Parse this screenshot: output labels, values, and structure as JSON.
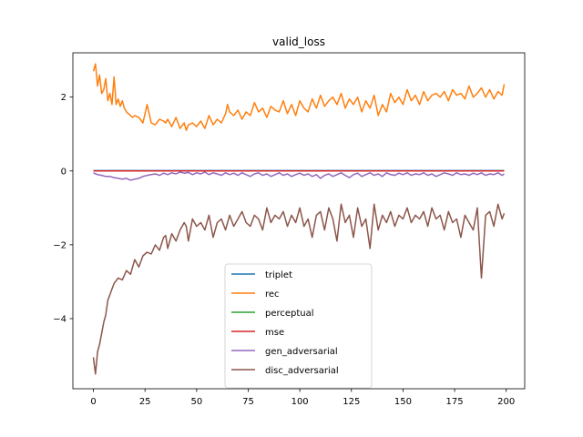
{
  "chart_data": {
    "type": "line",
    "title": "valid_loss",
    "xlabel": "",
    "ylabel": "",
    "xlim": [
      -9.95,
      208.95
    ],
    "ylim": [
      -5.9,
      3.2
    ],
    "xticks": [
      0,
      25,
      50,
      75,
      100,
      125,
      150,
      175,
      200
    ],
    "yticks": [
      -4,
      -2,
      0,
      2
    ],
    "grid": false,
    "legend_position": "lower-center",
    "series": [
      {
        "name": "triplet",
        "color": "#1f77b4",
        "x": [
          0,
          199
        ],
        "y": [
          0.01,
          0.01
        ]
      },
      {
        "name": "rec",
        "color": "#ff7f0e",
        "x": [
          0,
          1,
          2,
          3,
          4,
          5,
          6,
          7,
          8,
          9,
          10,
          11,
          12,
          13,
          14,
          15,
          16,
          17,
          18,
          19,
          20,
          22,
          24,
          26,
          28,
          30,
          32,
          34,
          35,
          36,
          38,
          40,
          42,
          44,
          45,
          46,
          48,
          50,
          52,
          54,
          56,
          58,
          60,
          62,
          64,
          65,
          66,
          68,
          70,
          72,
          74,
          76,
          78,
          80,
          82,
          84,
          86,
          88,
          90,
          92,
          94,
          96,
          98,
          100,
          102,
          104,
          106,
          108,
          110,
          112,
          114,
          116,
          118,
          120,
          122,
          124,
          126,
          128,
          130,
          132,
          134,
          136,
          138,
          140,
          142,
          144,
          146,
          148,
          150,
          152,
          154,
          156,
          158,
          160,
          162,
          164,
          166,
          168,
          170,
          172,
          174,
          176,
          178,
          180,
          182,
          184,
          186,
          188,
          190,
          192,
          194,
          196,
          198,
          199
        ],
        "y": [
          2.7,
          2.9,
          2.3,
          2.6,
          2.1,
          2.2,
          2.5,
          1.9,
          2.1,
          1.8,
          2.55,
          1.8,
          1.95,
          1.75,
          1.9,
          1.7,
          1.6,
          1.55,
          1.5,
          1.45,
          1.5,
          1.45,
          1.3,
          1.8,
          1.3,
          1.25,
          1.4,
          1.35,
          1.3,
          1.4,
          1.2,
          1.45,
          1.15,
          1.3,
          1.1,
          1.25,
          1.3,
          1.2,
          1.35,
          1.15,
          1.5,
          1.25,
          1.4,
          1.3,
          1.55,
          1.8,
          1.6,
          1.5,
          1.65,
          1.4,
          1.6,
          1.5,
          1.85,
          1.6,
          1.7,
          1.45,
          1.75,
          1.65,
          1.6,
          1.9,
          1.55,
          1.8,
          1.5,
          1.9,
          1.7,
          1.6,
          1.95,
          1.7,
          2.05,
          1.75,
          1.9,
          2.0,
          1.8,
          2.1,
          1.7,
          1.95,
          1.8,
          2.0,
          1.6,
          1.9,
          1.7,
          2.05,
          1.5,
          1.8,
          1.6,
          2.1,
          1.85,
          2.0,
          1.8,
          2.2,
          1.9,
          2.05,
          1.8,
          2.15,
          1.9,
          2.05,
          2.1,
          2.0,
          2.15,
          1.9,
          2.2,
          2.05,
          2.1,
          1.95,
          2.3,
          2.0,
          2.1,
          2.25,
          2.0,
          2.2,
          1.95,
          2.15,
          2.05,
          2.35
        ]
      },
      {
        "name": "perceptual",
        "color": "#2ca02c",
        "x": [
          0,
          199
        ],
        "y": [
          0.0,
          0.0
        ]
      },
      {
        "name": "mse",
        "color": "#d62728",
        "x": [
          0,
          199
        ],
        "y": [
          0.0,
          0.0
        ]
      },
      {
        "name": "gen_adversarial",
        "color": "#9467bd",
        "x": [
          0,
          2,
          4,
          6,
          8,
          10,
          12,
          14,
          16,
          18,
          20,
          22,
          24,
          26,
          28,
          30,
          32,
          34,
          36,
          38,
          40,
          42,
          44,
          46,
          48,
          50,
          52,
          54,
          56,
          58,
          60,
          62,
          64,
          66,
          68,
          70,
          72,
          74,
          76,
          78,
          80,
          82,
          84,
          86,
          88,
          90,
          92,
          94,
          96,
          98,
          100,
          102,
          104,
          106,
          108,
          110,
          112,
          114,
          116,
          118,
          120,
          122,
          124,
          126,
          128,
          130,
          132,
          134,
          136,
          138,
          140,
          142,
          144,
          146,
          148,
          150,
          152,
          154,
          156,
          158,
          160,
          162,
          164,
          166,
          168,
          170,
          172,
          174,
          176,
          178,
          180,
          182,
          184,
          186,
          188,
          190,
          192,
          194,
          196,
          198,
          199
        ],
        "y": [
          -0.05,
          -0.1,
          -0.12,
          -0.15,
          -0.15,
          -0.18,
          -0.2,
          -0.22,
          -0.2,
          -0.25,
          -0.22,
          -0.2,
          -0.15,
          -0.12,
          -0.1,
          -0.08,
          -0.12,
          -0.06,
          -0.1,
          -0.05,
          -0.08,
          -0.03,
          -0.06,
          -0.04,
          -0.1,
          -0.05,
          -0.08,
          -0.03,
          -0.1,
          -0.05,
          -0.08,
          -0.12,
          -0.05,
          -0.1,
          -0.06,
          -0.12,
          -0.05,
          -0.1,
          -0.15,
          -0.08,
          -0.05,
          -0.12,
          -0.08,
          -0.15,
          -0.1,
          -0.05,
          -0.12,
          -0.08,
          -0.15,
          -0.1,
          -0.06,
          -0.12,
          -0.08,
          -0.15,
          -0.1,
          -0.2,
          -0.12,
          -0.08,
          -0.15,
          -0.1,
          -0.05,
          -0.12,
          -0.18,
          -0.1,
          -0.06,
          -0.15,
          -0.1,
          -0.05,
          -0.12,
          -0.08,
          -0.15,
          -0.05,
          -0.1,
          -0.12,
          -0.06,
          -0.1,
          -0.05,
          -0.12,
          -0.08,
          -0.1,
          -0.05,
          -0.12,
          -0.08,
          -0.15,
          -0.1,
          -0.05,
          -0.08,
          -0.12,
          -0.05,
          -0.1,
          -0.08,
          -0.12,
          -0.06,
          -0.1,
          -0.05,
          -0.12,
          -0.08,
          -0.1,
          -0.05,
          -0.12,
          -0.08
        ]
      },
      {
        "name": "disc_adversarial",
        "color": "#8c564b",
        "x": [
          0,
          1,
          2,
          3,
          4,
          5,
          6,
          7,
          8,
          9,
          10,
          12,
          14,
          16,
          18,
          20,
          22,
          24,
          26,
          28,
          30,
          32,
          34,
          35,
          36,
          38,
          40,
          42,
          44,
          45,
          46,
          48,
          50,
          52,
          54,
          56,
          58,
          60,
          62,
          64,
          66,
          68,
          70,
          72,
          74,
          76,
          78,
          80,
          82,
          84,
          86,
          88,
          90,
          92,
          94,
          96,
          98,
          100,
          102,
          104,
          106,
          108,
          110,
          112,
          114,
          116,
          118,
          120,
          122,
          124,
          126,
          128,
          130,
          132,
          134,
          136,
          138,
          140,
          142,
          144,
          146,
          148,
          150,
          152,
          154,
          156,
          158,
          160,
          162,
          164,
          166,
          168,
          170,
          172,
          174,
          176,
          178,
          180,
          182,
          184,
          186,
          188,
          190,
          192,
          194,
          196,
          198,
          199
        ],
        "y": [
          -5.05,
          -5.5,
          -4.9,
          -4.7,
          -4.4,
          -4.1,
          -3.9,
          -3.5,
          -3.35,
          -3.2,
          -3.05,
          -2.9,
          -2.95,
          -2.7,
          -2.8,
          -2.4,
          -2.6,
          -2.3,
          -2.2,
          -2.25,
          -2.0,
          -2.15,
          -1.8,
          -1.75,
          -2.1,
          -1.7,
          -1.9,
          -1.6,
          -1.4,
          -1.5,
          -1.9,
          -1.3,
          -1.5,
          -1.4,
          -1.6,
          -1.2,
          -1.8,
          -1.4,
          -1.3,
          -1.6,
          -1.2,
          -1.5,
          -1.3,
          -1.1,
          -1.4,
          -1.5,
          -1.2,
          -1.3,
          -1.6,
          -1.0,
          -1.4,
          -1.2,
          -1.3,
          -1.1,
          -1.5,
          -1.2,
          -1.4,
          -1.0,
          -1.5,
          -1.3,
          -1.8,
          -1.2,
          -1.1,
          -1.6,
          -1.0,
          -1.3,
          -1.9,
          -0.9,
          -1.4,
          -1.2,
          -1.8,
          -1.0,
          -1.5,
          -1.3,
          -2.1,
          -0.9,
          -1.6,
          -1.2,
          -1.4,
          -1.1,
          -1.5,
          -1.2,
          -1.3,
          -1.0,
          -1.4,
          -1.2,
          -1.3,
          -1.1,
          -1.5,
          -1.0,
          -1.3,
          -1.2,
          -1.6,
          -1.1,
          -1.4,
          -1.3,
          -1.8,
          -1.2,
          -1.4,
          -1.6,
          -1.0,
          -2.9,
          -1.2,
          -1.1,
          -1.5,
          -0.9,
          -1.3,
          -1.15
        ]
      }
    ]
  }
}
